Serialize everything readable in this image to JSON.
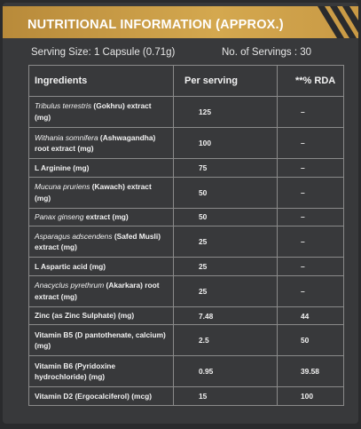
{
  "header": {
    "title": "NUTRITIONAL INFORMATION (APPROX.)"
  },
  "serving": {
    "size": "Serving Size: 1 Capsule (0.71g)",
    "count": "No. of Servings : 30"
  },
  "table": {
    "columns": [
      "Ingredients",
      "Per serving",
      "**% RDA"
    ],
    "rows": [
      {
        "ingredient": [
          {
            "text": "Tribulus terrestris",
            "italic": true
          },
          {
            "text": " (Gokhru) extract (mg)"
          }
        ],
        "per_serving": "125",
        "rda": "–"
      },
      {
        "ingredient": [
          {
            "text": "Withania somnifera",
            "italic": true
          },
          {
            "text": " (Ashwagandha) root extract (mg)"
          }
        ],
        "per_serving": "100",
        "rda": "–"
      },
      {
        "ingredient": [
          {
            "text": "L Arginine (mg)"
          }
        ],
        "per_serving": "75",
        "rda": "–"
      },
      {
        "ingredient": [
          {
            "text": "Mucuna pruriens",
            "italic": true
          },
          {
            "text": " (Kawach) extract (mg)"
          }
        ],
        "per_serving": "50",
        "rda": "–"
      },
      {
        "ingredient": [
          {
            "text": "Panax ginseng",
            "italic": true
          },
          {
            "text": " extract (mg)"
          }
        ],
        "per_serving": "50",
        "rda": "–"
      },
      {
        "ingredient": [
          {
            "text": "Asparagus adscendens",
            "italic": true
          },
          {
            "text": " (Safed Musli) extract (mg)"
          }
        ],
        "per_serving": "25",
        "rda": "–"
      },
      {
        "ingredient": [
          {
            "text": "L Aspartic acid (mg)"
          }
        ],
        "per_serving": "25",
        "rda": "–"
      },
      {
        "ingredient": [
          {
            "text": "Anacyclus pyrethrum",
            "italic": true
          },
          {
            "text": " (Akarkara) root extract (mg)"
          }
        ],
        "per_serving": "25",
        "rda": "–"
      },
      {
        "ingredient": [
          {
            "text": "Zinc (as Zinc Sulphate) (mg)"
          }
        ],
        "per_serving": "7.48",
        "rda": "44"
      },
      {
        "ingredient": [
          {
            "text": "Vitamin B5 (D pantothenate, calcium) (mg)"
          }
        ],
        "per_serving": "2.5",
        "rda": "50"
      },
      {
        "ingredient": [
          {
            "text": "Vitamin B6 (Pyridoxine hydrochloride) (mg)"
          }
        ],
        "per_serving": "0.95",
        "rda": "39.58"
      },
      {
        "ingredient": [
          {
            "text": "Vitamin D2 (Ergocalciferol) (mcg)"
          }
        ],
        "per_serving": "15",
        "rda": "100"
      }
    ]
  }
}
